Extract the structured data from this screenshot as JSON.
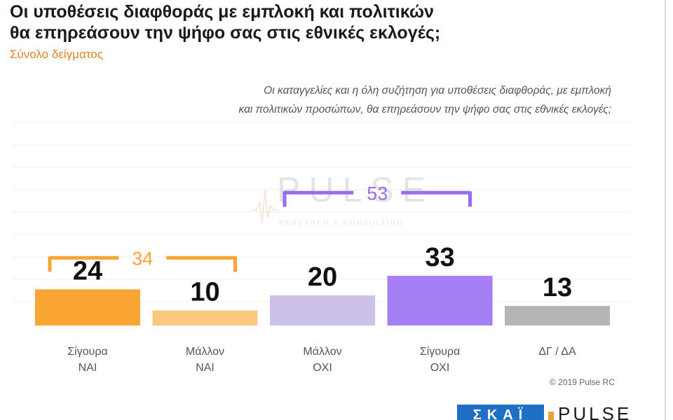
{
  "title_line1": "Οι υποθέσεις διαφθοράς με εμπλοκή και πολιτικών",
  "title_line2": "θα επηρεάσουν την ψήφο σας στις εθνικές εκλογές;",
  "subtitle": "Σύνολο δείγματος",
  "question_line1": "Οι καταγγελίες και η όλη συζήτηση για υποθέσεις διαφθοράς, με εμπλοκή",
  "question_line2": "και πολιτικών προσώπων, θα επηρεάσουν την ψήφο σας στις εθνικές εκλογές;",
  "copyright": "© 2019 Pulse RC",
  "watermark": {
    "brand": "PULSE",
    "tagline": "RESEARCH & CONSULTING"
  },
  "footer_logo_left": "ΣΚΑΪ",
  "footer_logo_right": "PULSE",
  "colors": {
    "sure_yes": "#f8a534",
    "rather_yes": "#fbc880",
    "rather_no": "#cdc1ea",
    "sure_no": "#a77ff5",
    "dk": "#b5b5b5",
    "yes_bracket": "#f8a534",
    "no_bracket": "#9b6bee"
  },
  "chart_data": {
    "type": "bar",
    "title": "Οι υποθέσεις διαφθοράς με εμπλοκή και πολιτικών θα επηρεάσουν την ψήφο σας στις εθνικές εκλογές;",
    "categories": [
      {
        "line1": "Σίγουρα",
        "line2": "ΝΑΙ"
      },
      {
        "line1": "Μάλλον",
        "line2": "ΝΑΙ"
      },
      {
        "line1": "Μάλλον",
        "line2": "ΟΧΙ"
      },
      {
        "line1": "Σίγουρα",
        "line2": "ΟΧΙ"
      },
      {
        "line1": "ΔΓ / ΔΑ",
        "line2": ""
      }
    ],
    "values": [
      24,
      10,
      20,
      33,
      13
    ],
    "bar_colors": [
      "#f8a534",
      "#fbc880",
      "#cdc1ea",
      "#a77ff5",
      "#b5b5b5"
    ],
    "groups": [
      {
        "label": "34",
        "total": 34,
        "from": 0,
        "to": 1,
        "color": "#f8a534"
      },
      {
        "label": "53",
        "total": 53,
        "from": 2,
        "to": 3,
        "color": "#9b6bee"
      }
    ],
    "ylim": [
      0,
      55
    ],
    "xlabel": "",
    "ylabel": "",
    "grid": true
  }
}
